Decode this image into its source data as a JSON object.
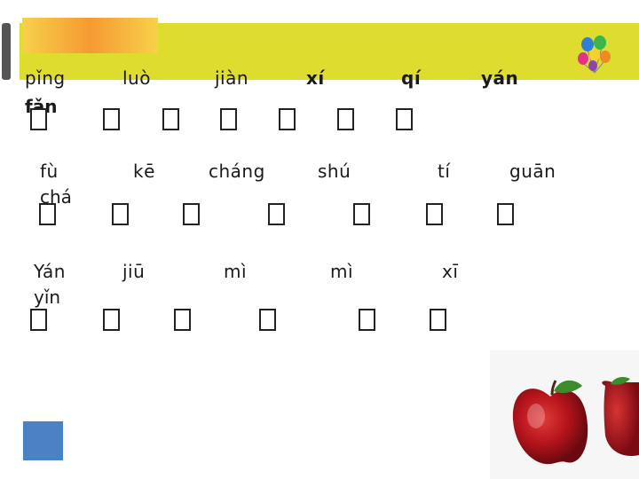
{
  "rows": [
    {
      "words": [
        {
          "text": "pǐng",
          "bold": false
        },
        {
          "text": "luò",
          "bold": false
        },
        {
          "text": "jiàn",
          "bold": false
        },
        {
          "text": "xí",
          "bold": true
        },
        {
          "text": "qí",
          "bold": true
        },
        {
          "text": "yán",
          "bold": true
        }
      ],
      "wrap": {
        "text": "fǎn",
        "bold": true
      }
    },
    {
      "words": [
        {
          "text": "fù",
          "bold": false
        },
        {
          "text": "kē",
          "bold": false
        },
        {
          "text": "cháng",
          "bold": false
        },
        {
          "text": "shú",
          "bold": false
        },
        {
          "text": "tí",
          "bold": false
        },
        {
          "text": "guān",
          "bold": false
        }
      ],
      "wrap": {
        "text": "chá",
        "bold": false
      }
    },
    {
      "words": [
        {
          "text": "Yán",
          "bold": false
        },
        {
          "text": "jiū",
          "bold": false
        },
        {
          "text": "mì",
          "bold": false
        },
        {
          "text": "mì",
          "bold": false
        },
        {
          "text": "xī",
          "bold": false
        }
      ],
      "wrap": {
        "text": "yǐn",
        "bold": false
      }
    }
  ],
  "colors": {
    "band": "#dedc2e",
    "accent": "#f59a32",
    "blue_square": "#4a82c4"
  },
  "icons": [
    "balloons-icon",
    "apple-icon"
  ]
}
